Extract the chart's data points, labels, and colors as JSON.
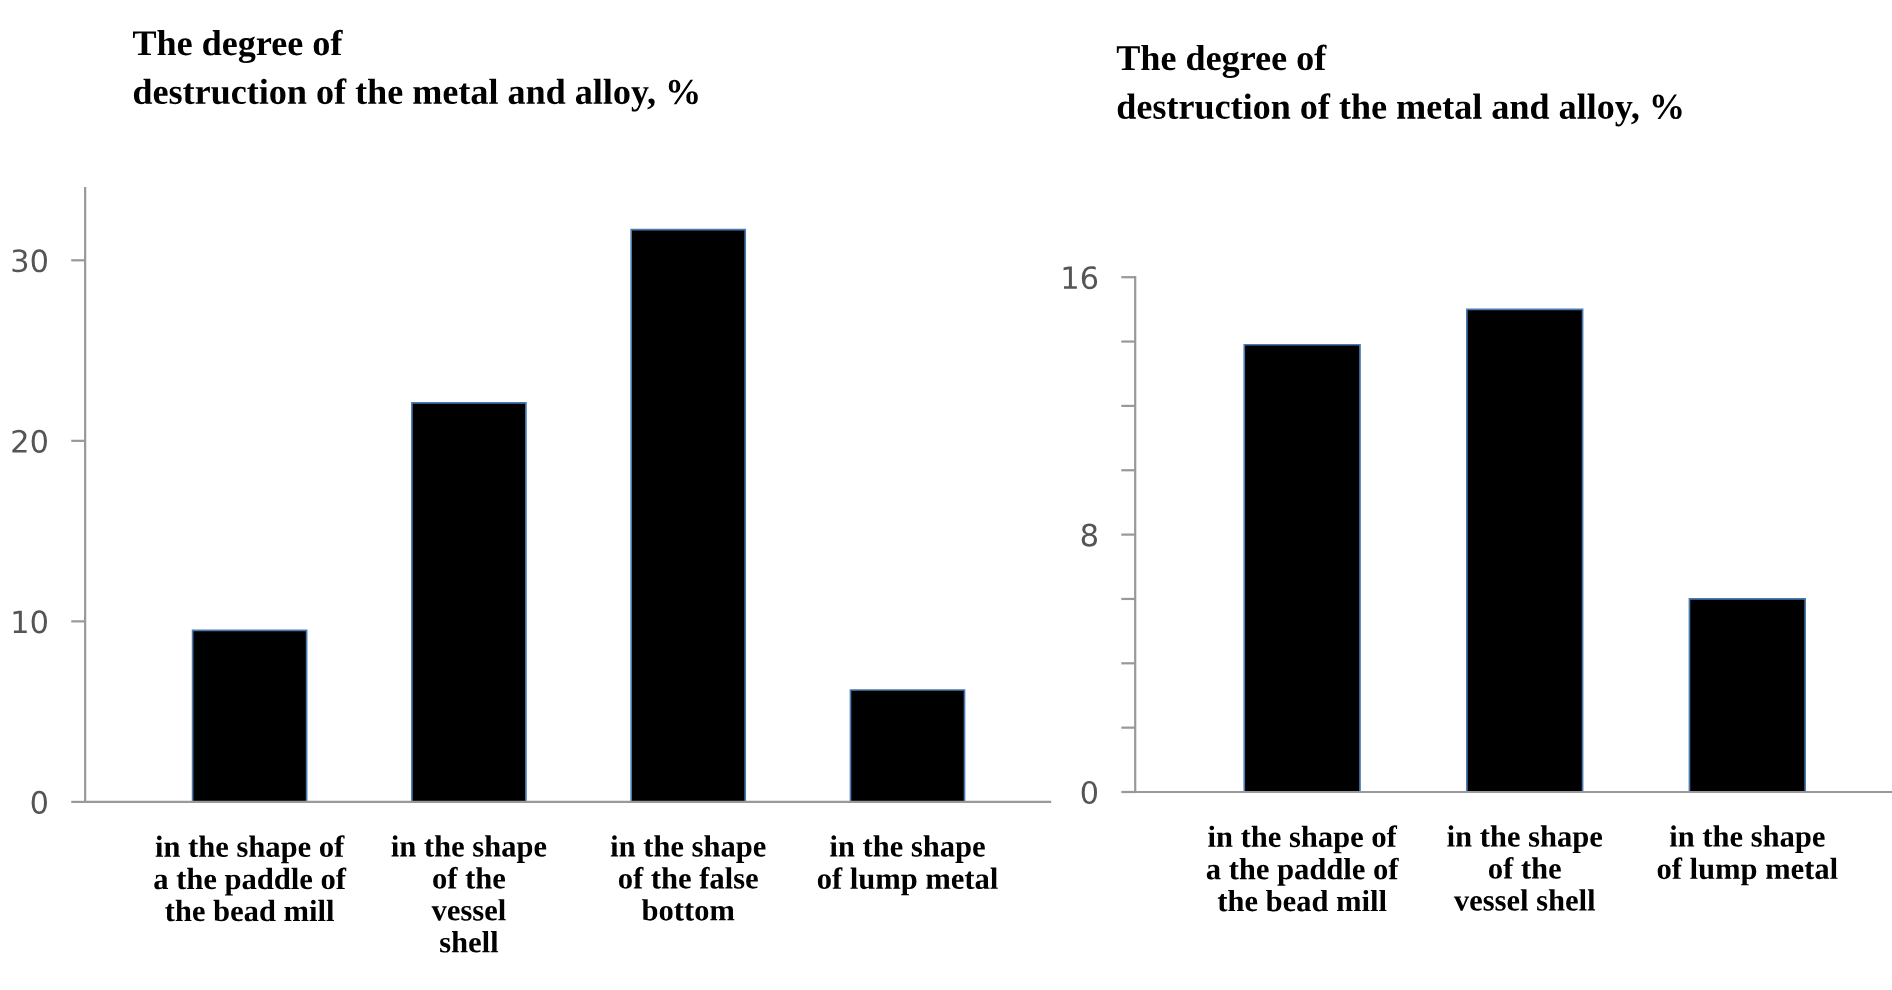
{
  "chart_data": [
    {
      "type": "bar",
      "title": "The degree of\ndestruction of the metal and alloy, %",
      "categories": [
        "in the shape of\na the paddle of\nthe bead mill",
        "in the shape\nof the\nvessel\nshell",
        "in the shape\nof the false\nbottom",
        "in the shape\nof lump metal"
      ],
      "values": [
        9.5,
        22.1,
        31.7,
        6.2
      ],
      "color": "#000000",
      "ylim": [
        0,
        34
      ],
      "yticks": [
        0,
        10,
        20,
        30
      ],
      "grid": false
    },
    {
      "type": "bar",
      "title": "The degree of\ndestruction of the metal and alloy, %",
      "categories": [
        "in the shape of\na the paddle of\nthe bead mill",
        "in the shape\nof the\nvessel shell",
        "in the shape\nof lump metal"
      ],
      "values": [
        13.9,
        15.0,
        6.0
      ],
      "color": "#000000",
      "ylim": [
        0,
        16
      ],
      "yticks": [
        0,
        {
          "value": 2,
          "label": null
        },
        {
          "value": 4,
          "label": null
        },
        {
          "value": 6,
          "label": null
        },
        8,
        {
          "value": 10,
          "label": null
        },
        {
          "value": 12,
          "label": null
        },
        {
          "value": 14,
          "label": null
        },
        16
      ],
      "grid": false
    }
  ]
}
